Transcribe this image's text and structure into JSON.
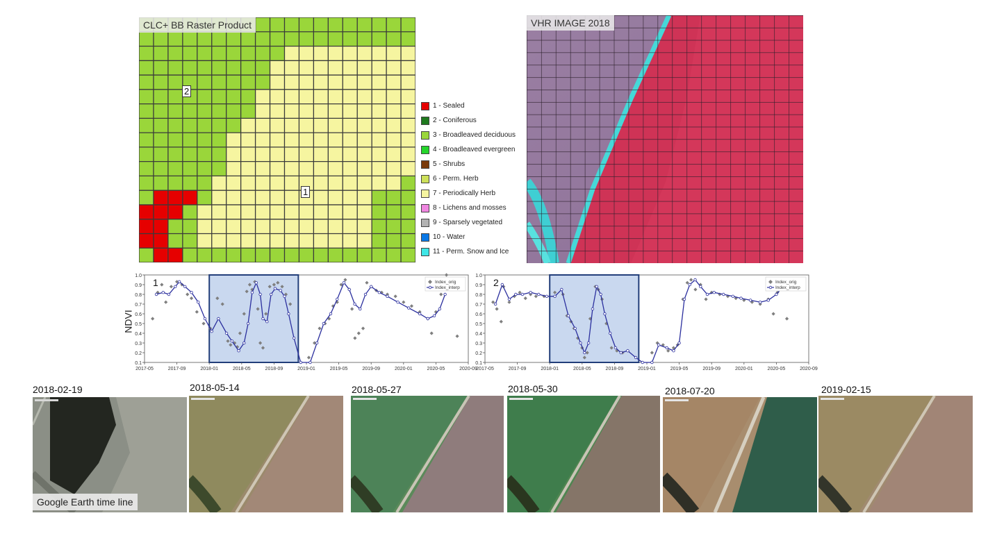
{
  "raster": {
    "label": "CLC+ BB Raster Product",
    "markers": [
      "2",
      "1"
    ],
    "grid_cols": 19,
    "grid_rows": 17,
    "rows": [
      "3333333333333333333",
      "3333333333333333333",
      "3333333333777777777",
      "3333333337777777777",
      "3333333337777777777",
      "3333333377777777777",
      "3333333377777777777",
      "3333333777777777777",
      "3333337777777777777",
      "3333337777777777777",
      "3333337777777777777",
      "3333377777777777773",
      "3111377777777777333",
      "1113777777777777333",
      "1133777777777777333",
      "1133777777777777333",
      "3113333333333333333"
    ]
  },
  "legend": [
    {
      "label": "1 - Sealed",
      "color": "#e60000"
    },
    {
      "label": "2 - Coniferous",
      "color": "#1f7a1f"
    },
    {
      "label": "3 - Broadleaved deciduous",
      "color": "#9ad63a"
    },
    {
      "label": "4 - Broadleaved evergreen",
      "color": "#25d52b"
    },
    {
      "label": "5 - Shrubs",
      "color": "#7a3b0c"
    },
    {
      "label": "6 - Perm. Herb",
      "color": "#cde05a"
    },
    {
      "label": "7 - Periodically Herb",
      "color": "#f6f5a0"
    },
    {
      "label": "8 - Lichens and mosses",
      "color": "#ef86e0"
    },
    {
      "label": "9 - Sparsely vegetated",
      "color": "#b3b3b3"
    },
    {
      "label": "10 - Water",
      "color": "#0a78e6"
    },
    {
      "label": "11 - Perm. Snow and Ice",
      "color": "#3fe6e6"
    }
  ],
  "vhr": {
    "label": "VHR IMAGE 2018"
  },
  "charts": {
    "ylabel": "NDVI",
    "yticks": [
      "0.1",
      "0.2",
      "0.3",
      "0.4",
      "0.5",
      "0.6",
      "0.7",
      "0.8",
      "0.9",
      "1.0"
    ],
    "xticks": [
      "2017-05",
      "2017-09",
      "2018-01",
      "2018-05",
      "2018-09",
      "2019-01",
      "2019-05",
      "2019-09",
      "2020-01",
      "2020-05",
      "2020-09"
    ],
    "legend_orig": "Index_orig",
    "legend_interp": "Index_interp"
  },
  "chart_data": [
    {
      "type": "scatter",
      "panel_label": "1",
      "ylabel": "NDVI",
      "ylim": [
        0.1,
        1.0
      ],
      "x_range": [
        "2017-05",
        "2020-09"
      ],
      "highlight_range": [
        "2018-01",
        "2018-12"
      ],
      "series": [
        {
          "name": "Index_orig",
          "points": [
            [
              "2017-06-01",
              0.55
            ],
            [
              "2017-06-20",
              0.82
            ],
            [
              "2017-07-05",
              0.9
            ],
            [
              "2017-07-20",
              0.72
            ],
            [
              "2017-08-10",
              0.88
            ],
            [
              "2017-09-01",
              0.93
            ],
            [
              "2017-09-20",
              0.9
            ],
            [
              "2017-10-10",
              0.8
            ],
            [
              "2017-10-25",
              0.76
            ],
            [
              "2017-11-15",
              0.62
            ],
            [
              "2017-12-10",
              0.5
            ],
            [
              "2018-01-05",
              0.45
            ],
            [
              "2018-02-01",
              0.76
            ],
            [
              "2018-02-20",
              0.7
            ],
            [
              "2018-03-10",
              0.32
            ],
            [
              "2018-03-20",
              0.28
            ],
            [
              "2018-04-05",
              0.3
            ],
            [
              "2018-04-15",
              0.26
            ],
            [
              "2018-04-25",
              0.4
            ],
            [
              "2018-05-10",
              0.6
            ],
            [
              "2018-05-20",
              0.83
            ],
            [
              "2018-06-01",
              0.9
            ],
            [
              "2018-06-10",
              0.85
            ],
            [
              "2018-06-20",
              0.93
            ],
            [
              "2018-07-01",
              0.65
            ],
            [
              "2018-07-10",
              0.3
            ],
            [
              "2018-07-20",
              0.25
            ],
            [
              "2018-08-01",
              0.6
            ],
            [
              "2018-08-15",
              0.88
            ],
            [
              "2018-09-01",
              0.9
            ],
            [
              "2018-09-15",
              0.92
            ],
            [
              "2018-10-01",
              0.88
            ],
            [
              "2018-10-15",
              0.8
            ],
            [
              "2018-11-01",
              0.7
            ],
            [
              "2019-01-10",
              0.15
            ],
            [
              "2019-02-01",
              0.3
            ],
            [
              "2019-02-20",
              0.45
            ],
            [
              "2019-03-10",
              0.5
            ],
            [
              "2019-03-25",
              0.55
            ],
            [
              "2019-04-10",
              0.68
            ],
            [
              "2019-04-25",
              0.72
            ],
            [
              "2019-05-10",
              0.9
            ],
            [
              "2019-05-25",
              0.95
            ],
            [
              "2019-06-10",
              0.85
            ],
            [
              "2019-06-20",
              0.65
            ],
            [
              "2019-07-01",
              0.35
            ],
            [
              "2019-07-15",
              0.4
            ],
            [
              "2019-08-01",
              0.45
            ],
            [
              "2019-08-15",
              0.92
            ],
            [
              "2019-09-01",
              0.88
            ],
            [
              "2019-09-20",
              0.84
            ],
            [
              "2019-10-10",
              0.82
            ],
            [
              "2019-11-01",
              0.8
            ],
            [
              "2019-12-01",
              0.78
            ],
            [
              "2020-01-01",
              0.72
            ],
            [
              "2020-02-01",
              0.68
            ],
            [
              "2020-03-01",
              0.62
            ],
            [
              "2020-04-01",
              0.55
            ],
            [
              "2020-04-15",
              0.4
            ],
            [
              "2020-05-01",
              0.62
            ],
            [
              "2020-05-20",
              0.8
            ],
            [
              "2020-06-10",
              1.0
            ],
            [
              "2020-07-20",
              0.37
            ]
          ]
        },
        {
          "name": "Index_interp",
          "points": [
            [
              "2017-06-15",
              0.8
            ],
            [
              "2017-07-10",
              0.82
            ],
            [
              "2017-08-01",
              0.8
            ],
            [
              "2017-08-25",
              0.88
            ],
            [
              "2017-09-10",
              0.93
            ],
            [
              "2017-10-01",
              0.88
            ],
            [
              "2017-10-25",
              0.82
            ],
            [
              "2017-11-20",
              0.72
            ],
            [
              "2017-12-15",
              0.55
            ],
            [
              "2018-01-10",
              0.42
            ],
            [
              "2018-02-05",
              0.55
            ],
            [
              "2018-03-05",
              0.4
            ],
            [
              "2018-03-25",
              0.32
            ],
            [
              "2018-04-20",
              0.22
            ],
            [
              "2018-05-10",
              0.3
            ],
            [
              "2018-05-25",
              0.5
            ],
            [
              "2018-06-10",
              0.82
            ],
            [
              "2018-06-25",
              0.92
            ],
            [
              "2018-07-10",
              0.8
            ],
            [
              "2018-07-20",
              0.55
            ],
            [
              "2018-08-05",
              0.52
            ],
            [
              "2018-08-20",
              0.8
            ],
            [
              "2018-09-05",
              0.86
            ],
            [
              "2018-09-25",
              0.84
            ],
            [
              "2018-10-10",
              0.78
            ],
            [
              "2018-10-25",
              0.6
            ],
            [
              "2018-11-15",
              0.35
            ],
            [
              "2018-12-10",
              0.1
            ],
            [
              "2019-01-15",
              0.1
            ],
            [
              "2019-02-10",
              0.3
            ],
            [
              "2019-03-05",
              0.5
            ],
            [
              "2019-04-01",
              0.6
            ],
            [
              "2019-04-25",
              0.75
            ],
            [
              "2019-05-20",
              0.92
            ],
            [
              "2019-06-10",
              0.85
            ],
            [
              "2019-06-30",
              0.7
            ],
            [
              "2019-07-20",
              0.65
            ],
            [
              "2019-08-10",
              0.8
            ],
            [
              "2019-09-01",
              0.88
            ],
            [
              "2019-10-01",
              0.82
            ],
            [
              "2019-11-01",
              0.78
            ],
            [
              "2019-12-10",
              0.72
            ],
            [
              "2020-01-20",
              0.66
            ],
            [
              "2020-03-01",
              0.6
            ],
            [
              "2020-04-01",
              0.55
            ],
            [
              "2020-04-25",
              0.58
            ],
            [
              "2020-05-15",
              0.65
            ],
            [
              "2020-06-05",
              0.8
            ]
          ]
        }
      ]
    },
    {
      "type": "scatter",
      "panel_label": "2",
      "ylabel": "NDVI",
      "ylim": [
        0.1,
        1.0
      ],
      "x_range": [
        "2017-05",
        "2020-09"
      ],
      "highlight_range": [
        "2018-01",
        "2018-12"
      ],
      "series": [
        {
          "name": "Index_orig",
          "points": [
            [
              "2017-06-01",
              0.72
            ],
            [
              "2017-06-15",
              0.65
            ],
            [
              "2017-07-01",
              0.52
            ],
            [
              "2017-07-10",
              0.88
            ],
            [
              "2017-08-01",
              0.72
            ],
            [
              "2017-08-20",
              0.78
            ],
            [
              "2017-09-10",
              0.82
            ],
            [
              "2017-10-01",
              0.76
            ],
            [
              "2017-10-20",
              0.8
            ],
            [
              "2017-11-10",
              0.78
            ],
            [
              "2017-12-10",
              0.78
            ],
            [
              "2018-01-20",
              0.82
            ],
            [
              "2018-02-20",
              0.8
            ],
            [
              "2018-03-05",
              0.58
            ],
            [
              "2018-03-20",
              0.52
            ],
            [
              "2018-04-01",
              0.45
            ],
            [
              "2018-04-15",
              0.35
            ],
            [
              "2018-05-01",
              0.25
            ],
            [
              "2018-05-10",
              0.15
            ],
            [
              "2018-05-20",
              0.2
            ],
            [
              "2018-06-01",
              0.55
            ],
            [
              "2018-06-20",
              0.88
            ],
            [
              "2018-07-01",
              0.85
            ],
            [
              "2018-07-15",
              0.75
            ],
            [
              "2018-08-01",
              0.5
            ],
            [
              "2018-08-20",
              0.25
            ],
            [
              "2018-09-10",
              0.22
            ],
            [
              "2018-10-01",
              0.2
            ],
            [
              "2018-10-20",
              0.22
            ],
            [
              "2019-01-20",
              0.2
            ],
            [
              "2019-02-10",
              0.3
            ],
            [
              "2019-03-01",
              0.28
            ],
            [
              "2019-03-20",
              0.22
            ],
            [
              "2019-04-10",
              0.25
            ],
            [
              "2019-04-25",
              0.28
            ],
            [
              "2019-05-15",
              0.75
            ],
            [
              "2019-06-01",
              0.92
            ],
            [
              "2019-06-15",
              0.95
            ],
            [
              "2019-07-01",
              0.85
            ],
            [
              "2019-07-20",
              0.9
            ],
            [
              "2019-08-10",
              0.75
            ],
            [
              "2019-09-01",
              0.82
            ],
            [
              "2019-10-01",
              0.8
            ],
            [
              "2019-11-01",
              0.78
            ],
            [
              "2019-12-01",
              0.76
            ],
            [
              "2020-01-01",
              0.74
            ],
            [
              "2020-02-01",
              0.72
            ],
            [
              "2020-03-01",
              0.7
            ],
            [
              "2020-04-01",
              0.75
            ],
            [
              "2020-04-20",
              0.6
            ],
            [
              "2020-05-05",
              0.82
            ],
            [
              "2020-05-20",
              0.88
            ],
            [
              "2020-06-10",
              0.55
            ]
          ]
        },
        {
          "name": "Index_interp",
          "points": [
            [
              "2017-06-10",
              0.7
            ],
            [
              "2017-07-05",
              0.9
            ],
            [
              "2017-08-01",
              0.75
            ],
            [
              "2017-08-25",
              0.8
            ],
            [
              "2017-09-20",
              0.8
            ],
            [
              "2017-10-20",
              0.82
            ],
            [
              "2017-11-20",
              0.8
            ],
            [
              "2017-12-20",
              0.78
            ],
            [
              "2018-01-20",
              0.78
            ],
            [
              "2018-02-15",
              0.85
            ],
            [
              "2018-03-10",
              0.58
            ],
            [
              "2018-04-05",
              0.45
            ],
            [
              "2018-04-25",
              0.3
            ],
            [
              "2018-05-10",
              0.2
            ],
            [
              "2018-05-25",
              0.3
            ],
            [
              "2018-06-10",
              0.65
            ],
            [
              "2018-06-25",
              0.88
            ],
            [
              "2018-07-10",
              0.8
            ],
            [
              "2018-07-25",
              0.6
            ],
            [
              "2018-08-15",
              0.4
            ],
            [
              "2018-09-05",
              0.25
            ],
            [
              "2018-09-25",
              0.2
            ],
            [
              "2018-10-20",
              0.22
            ],
            [
              "2018-11-20",
              0.15
            ],
            [
              "2018-12-15",
              0.1
            ],
            [
              "2019-01-20",
              0.1
            ],
            [
              "2019-02-15",
              0.28
            ],
            [
              "2019-03-15",
              0.25
            ],
            [
              "2019-04-10",
              0.22
            ],
            [
              "2019-05-01",
              0.3
            ],
            [
              "2019-05-20",
              0.75
            ],
            [
              "2019-06-10",
              0.9
            ],
            [
              "2019-06-30",
              0.95
            ],
            [
              "2019-07-20",
              0.88
            ],
            [
              "2019-08-15",
              0.8
            ],
            [
              "2019-09-10",
              0.82
            ],
            [
              "2019-10-15",
              0.8
            ],
            [
              "2019-11-20",
              0.78
            ],
            [
              "2019-12-20",
              0.76
            ],
            [
              "2020-01-25",
              0.74
            ],
            [
              "2020-03-01",
              0.72
            ],
            [
              "2020-04-01",
              0.74
            ],
            [
              "2020-05-01",
              0.8
            ],
            [
              "2020-05-25",
              0.88
            ]
          ]
        }
      ]
    }
  ],
  "timeline": {
    "caption": "Google Earth time line",
    "dates": [
      "2018-02-19",
      "2018-05-14",
      "2018-05-27",
      "2018-05-30",
      "2018-07-20",
      "2019-02-15"
    ]
  },
  "colors": {
    "interp_line": "#2b2f9e",
    "orig_points": "#7f7f7f",
    "highlight_fill": "#c9d8ef",
    "highlight_stroke": "#223e7a"
  }
}
